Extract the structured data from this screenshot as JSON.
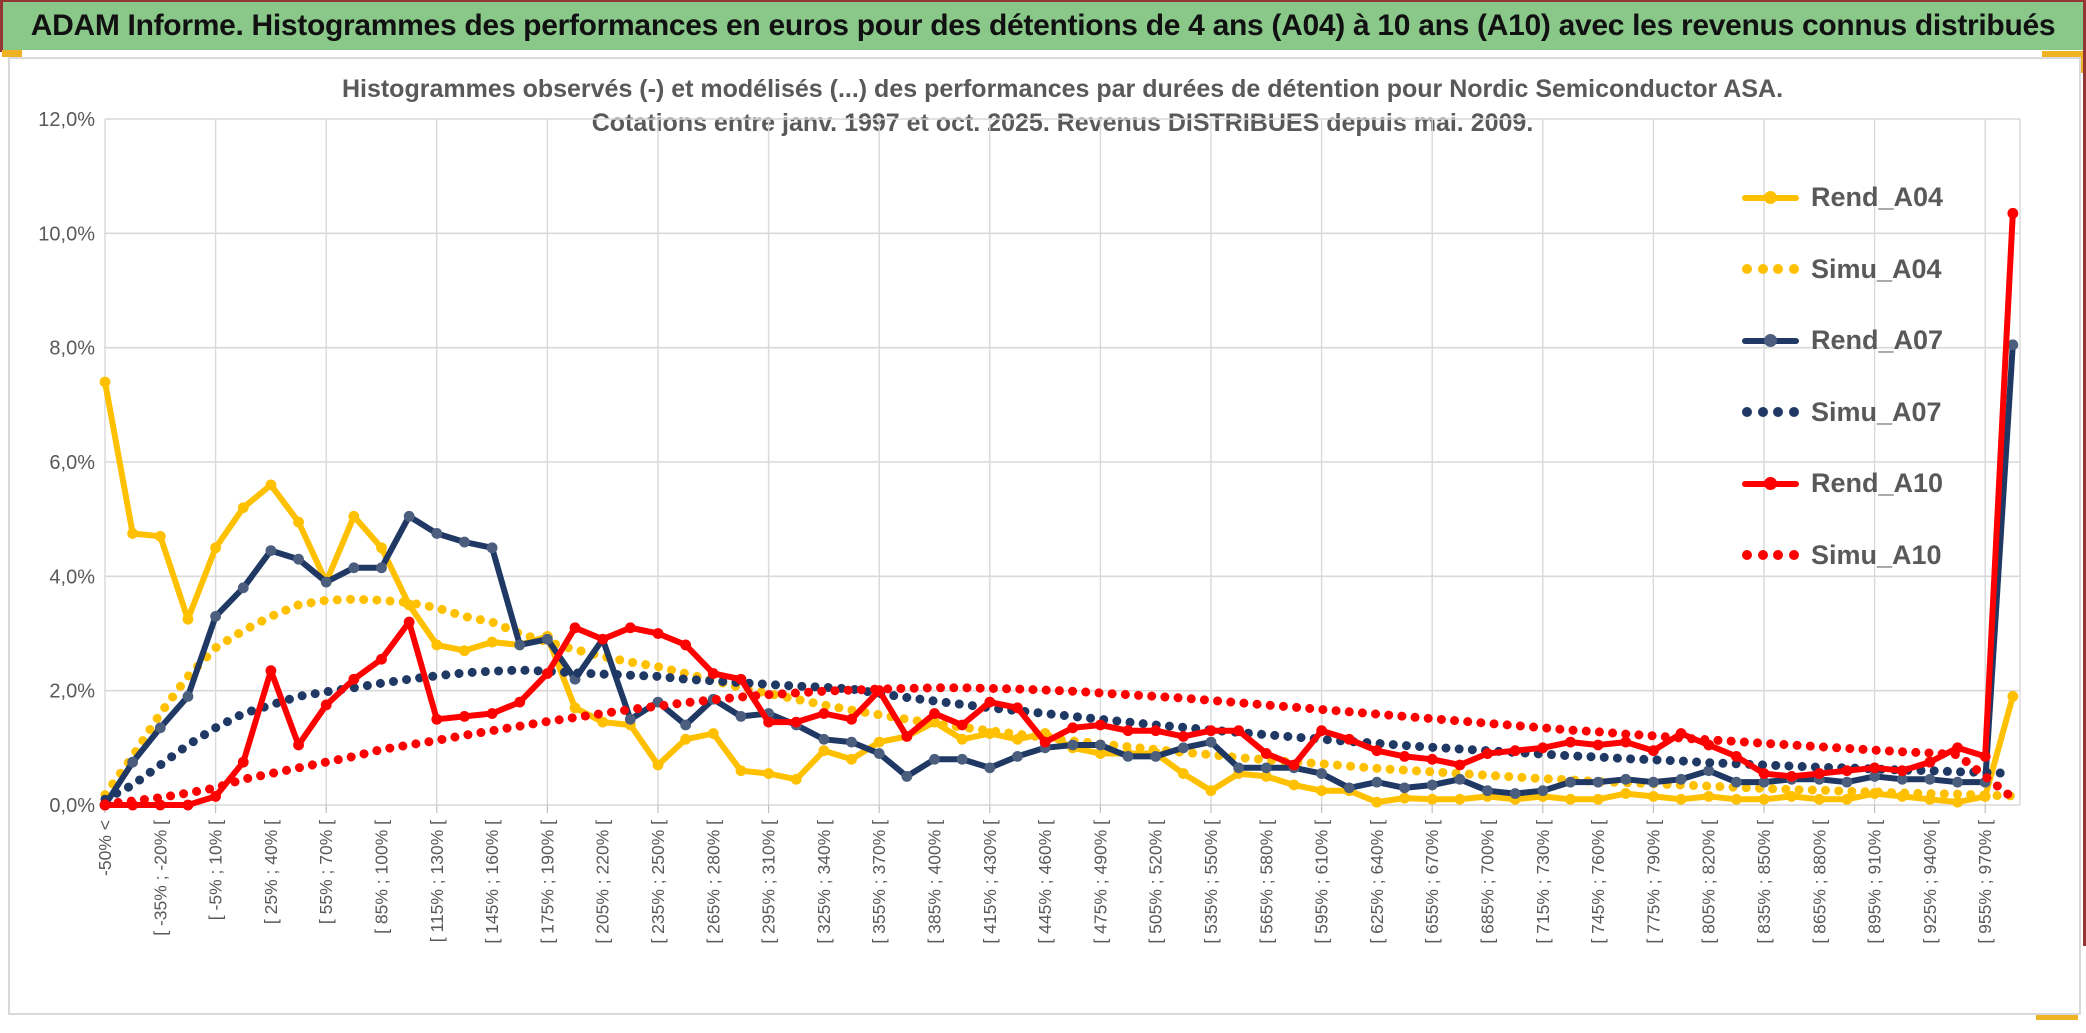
{
  "banner": {
    "title": "ADAM Informe. Histogrammes des performances en euros pour des détentions de 4 ans (A04) à 10 ans (A10) avec les revenus connus distribués"
  },
  "chart": {
    "title_line1": "Histogrammes observés (-) et modélisés (...) des performances par durées de détention pour Nordic Semiconductor ASA.",
    "title_line2": "Cotations entre janv. 1997 et oct. 2025. Revenus DISTRIBUES depuis mai. 2009.",
    "y_tick_labels": [
      "12,0%",
      "10,0%",
      "8,0%",
      "6,0%",
      "4,0%",
      "2,0%",
      "0,0%"
    ]
  },
  "colors": {
    "gold": "#FFC000",
    "navy": "#1F3864",
    "navy_marker": "#4C5E7D",
    "red": "#FF0000",
    "grid": "#D9D9D9",
    "tick": "#BFBFBF",
    "text": "#595959",
    "banner_green": "#8AC88A",
    "accent_gold": "#F0B323",
    "edge_maroon": "#943634"
  },
  "chart_data": {
    "type": "line",
    "title": "Histogrammes observés (-) et modélisés (...) des performances par durées de détention pour Nordic Semiconductor ASA. Cotations entre janv. 1997 et oct. 2025. Revenus DISTRIBUES depuis mai. 2009.",
    "xlabel": "",
    "ylabel": "",
    "ylim": [
      0,
      12
    ],
    "y_ticks_percent": [
      0,
      2,
      4,
      6,
      8,
      10,
      12
    ],
    "grid": true,
    "legend_position": "right-inside",
    "n_bins": 70,
    "x_labels_every_other_bin": true,
    "x_labels": [
      "-50% <",
      "[ -35% ; -20% [",
      "[ -5% ; 10% [",
      "[ 25% ; 40% [",
      "[ 55% ; 70% [",
      "[ 85% ; 100% [",
      "[ 115% ; 130% [",
      "[ 145% ; 160% [",
      "[ 175% ; 190% [",
      "[ 205% ; 220% [",
      "[ 235% ; 250% [",
      "[ 265% ; 280% [",
      "[ 295% ; 310% [",
      "[ 325% ; 340% [",
      "[ 355% ; 370% [",
      "[ 385% ; 400% [",
      "[ 415% ; 430% [",
      "[ 445% ; 460% [",
      "[ 475% ; 490% [",
      "[ 505% ; 520% [",
      "[ 535% ; 550% [",
      "[ 565% ; 580% [",
      "[ 595% ; 610% [",
      "[ 625% ; 640% [",
      "[ 655% ; 670% [",
      "[ 685% ; 700% [",
      "[ 715% ; 730% [",
      "[ 745% ; 760% [",
      "[ 775% ; 790% [",
      "[ 805% ; 820% [",
      "[ 835% ; 850% [",
      "[ 865% ; 880% [",
      "[ 895% ; 910% [",
      "[ 925% ; 940% [",
      "[ 955% ; 970% ["
    ],
    "series": [
      {
        "name": "Rend_A04",
        "style": "solid",
        "color": "#FFC000",
        "marker_color": "#FFC000",
        "values": [
          7.4,
          4.75,
          4.7,
          3.25,
          4.5,
          5.2,
          5.6,
          4.95,
          3.9,
          5.05,
          4.5,
          3.5,
          2.8,
          2.7,
          2.85,
          2.8,
          2.95,
          1.7,
          1.45,
          1.4,
          0.7,
          1.15,
          1.25,
          0.6,
          0.55,
          0.45,
          0.95,
          0.8,
          1.1,
          1.2,
          1.45,
          1.15,
          1.25,
          1.15,
          1.25,
          1.0,
          0.9,
          0.9,
          0.9,
          0.55,
          0.25,
          0.55,
          0.5,
          0.35,
          0.25,
          0.25,
          0.05,
          0.12,
          0.1,
          0.1,
          0.15,
          0.1,
          0.15,
          0.1,
          0.1,
          0.2,
          0.15,
          0.1,
          0.15,
          0.1,
          0.1,
          0.15,
          0.1,
          0.1,
          0.2,
          0.15,
          0.1,
          0.05,
          0.15,
          1.9
        ]
      },
      {
        "name": "Simu_A04",
        "style": "dotted",
        "color": "#FFC000",
        "values": [
          0.18,
          0.85,
          1.6,
          2.25,
          2.75,
          3.05,
          3.3,
          3.5,
          3.58,
          3.6,
          3.58,
          3.54,
          3.45,
          3.3,
          3.2,
          3.0,
          2.85,
          2.72,
          2.6,
          2.5,
          2.42,
          2.3,
          2.18,
          2.05,
          1.95,
          1.85,
          1.75,
          1.66,
          1.58,
          1.5,
          1.43,
          1.36,
          1.3,
          1.24,
          1.18,
          1.12,
          1.07,
          1.02,
          0.97,
          0.92,
          0.88,
          0.83,
          0.79,
          0.75,
          0.72,
          0.68,
          0.64,
          0.61,
          0.58,
          0.55,
          0.52,
          0.49,
          0.46,
          0.44,
          0.41,
          0.39,
          0.37,
          0.35,
          0.33,
          0.31,
          0.29,
          0.27,
          0.26,
          0.24,
          0.23,
          0.21,
          0.2,
          0.19,
          0.17,
          0.16
        ]
      },
      {
        "name": "Rend_A07",
        "style": "solid",
        "color": "#1F3864",
        "marker_color": "#4C5E7D",
        "values": [
          0,
          0.75,
          1.35,
          1.9,
          3.3,
          3.8,
          4.45,
          4.3,
          3.9,
          4.15,
          4.15,
          5.05,
          4.75,
          4.6,
          4.5,
          2.8,
          2.9,
          2.2,
          2.9,
          1.5,
          1.8,
          1.4,
          1.85,
          1.55,
          1.6,
          1.4,
          1.15,
          1.1,
          0.9,
          0.5,
          0.8,
          0.8,
          0.65,
          0.85,
          1.0,
          1.05,
          1.05,
          0.85,
          0.85,
          1.0,
          1.1,
          0.65,
          0.65,
          0.65,
          0.55,
          0.3,
          0.4,
          0.3,
          0.35,
          0.45,
          0.25,
          0.2,
          0.25,
          0.4,
          0.4,
          0.45,
          0.4,
          0.45,
          0.6,
          0.4,
          0.4,
          0.45,
          0.45,
          0.4,
          0.5,
          0.45,
          0.45,
          0.4,
          0.4,
          8.05
        ]
      },
      {
        "name": "Simu_A07",
        "style": "dotted",
        "color": "#1F3864",
        "values": [
          0.1,
          0.35,
          0.7,
          1.05,
          1.35,
          1.6,
          1.75,
          1.9,
          1.98,
          2.05,
          2.13,
          2.2,
          2.26,
          2.31,
          2.34,
          2.36,
          2.34,
          2.31,
          2.29,
          2.27,
          2.25,
          2.2,
          2.17,
          2.14,
          2.11,
          2.08,
          2.06,
          2.03,
          1.95,
          1.88,
          1.82,
          1.76,
          1.7,
          1.65,
          1.6,
          1.55,
          1.5,
          1.45,
          1.4,
          1.36,
          1.31,
          1.27,
          1.23,
          1.19,
          1.15,
          1.11,
          1.08,
          1.04,
          1.01,
          0.98,
          0.95,
          0.92,
          0.89,
          0.86,
          0.84,
          0.81,
          0.79,
          0.77,
          0.74,
          0.72,
          0.7,
          0.68,
          0.66,
          0.65,
          0.63,
          0.61,
          0.6,
          0.58,
          0.57,
          0.55
        ]
      },
      {
        "name": "Rend_A10",
        "style": "solid",
        "color": "#FF0000",
        "marker_color": "#FF0000",
        "values": [
          0,
          0,
          0,
          0,
          0.15,
          0.75,
          2.35,
          1.05,
          1.75,
          2.2,
          2.55,
          3.2,
          1.5,
          1.55,
          1.6,
          1.8,
          2.3,
          3.1,
          2.9,
          3.1,
          3.0,
          2.8,
          2.3,
          2.2,
          1.45,
          1.45,
          1.6,
          1.5,
          2.0,
          1.2,
          1.6,
          1.4,
          1.8,
          1.7,
          1.1,
          1.35,
          1.4,
          1.3,
          1.3,
          1.2,
          1.3,
          1.3,
          0.9,
          0.7,
          1.3,
          1.15,
          0.95,
          0.85,
          0.8,
          0.7,
          0.9,
          0.95,
          1.0,
          1.1,
          1.05,
          1.1,
          0.95,
          1.25,
          1.05,
          0.85,
          0.55,
          0.5,
          0.55,
          0.6,
          0.65,
          0.6,
          0.75,
          1.0,
          0.85,
          10.35
        ]
      },
      {
        "name": "Simu_A10",
        "style": "dotted",
        "color": "#FF0000",
        "values": [
          0.02,
          0.07,
          0.13,
          0.21,
          0.3,
          0.45,
          0.55,
          0.65,
          0.75,
          0.85,
          0.97,
          1.05,
          1.13,
          1.22,
          1.3,
          1.38,
          1.46,
          1.53,
          1.6,
          1.67,
          1.73,
          1.79,
          1.84,
          1.89,
          1.93,
          1.96,
          1.99,
          2.01,
          2.03,
          2.04,
          2.05,
          2.05,
          2.04,
          2.03,
          2.01,
          1.99,
          1.96,
          1.93,
          1.9,
          1.87,
          1.83,
          1.79,
          1.75,
          1.71,
          1.67,
          1.63,
          1.59,
          1.55,
          1.51,
          1.47,
          1.43,
          1.39,
          1.35,
          1.31,
          1.28,
          1.24,
          1.21,
          1.17,
          1.14,
          1.11,
          1.08,
          1.05,
          1.02,
          0.99,
          0.96,
          0.93,
          0.91,
          0.88,
          0.5,
          0.12
        ]
      }
    ]
  }
}
